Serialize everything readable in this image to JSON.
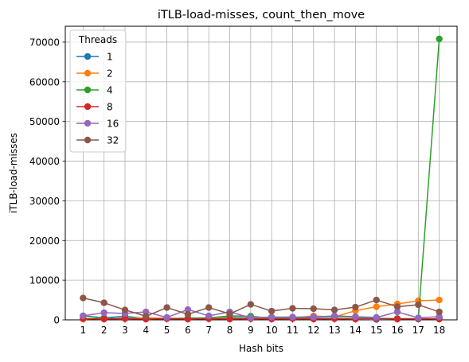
{
  "chart_data": {
    "type": "line",
    "title": "iTLB-load-misses, count_then_move",
    "xlabel": "Hash bits",
    "ylabel": "iTLB-load-misses",
    "x": [
      1,
      2,
      3,
      4,
      5,
      6,
      7,
      8,
      9,
      10,
      11,
      12,
      13,
      14,
      15,
      16,
      17,
      18
    ],
    "xticks": [
      "1",
      "2",
      "3",
      "4",
      "5",
      "6",
      "7",
      "8",
      "9",
      "10",
      "11",
      "12",
      "13",
      "14",
      "15",
      "16",
      "17",
      "18"
    ],
    "ylim": [
      0,
      74000
    ],
    "yticks": [
      0,
      10000,
      20000,
      30000,
      40000,
      50000,
      60000,
      70000
    ],
    "ytick_labels": [
      "0",
      "10000",
      "20000",
      "30000",
      "40000",
      "50000",
      "60000",
      "70000"
    ],
    "grid": true,
    "legend": {
      "title": "Threads",
      "placement": "top-left"
    },
    "series": [
      {
        "name": "1",
        "color": "#1f77b4",
        "values": [
          1000,
          500,
          900,
          300,
          400,
          200,
          300,
          600,
          500,
          300,
          600,
          400,
          300,
          200,
          100,
          300,
          200,
          300
        ]
      },
      {
        "name": "2",
        "color": "#ff7f0e",
        "values": [
          200,
          300,
          400,
          500,
          400,
          400,
          500,
          300,
          400,
          600,
          500,
          1000,
          700,
          2300,
          3300,
          4000,
          4800,
          5000
        ]
      },
      {
        "name": "4",
        "color": "#2ca02c",
        "values": [
          1000,
          300,
          400,
          200,
          300,
          400,
          500,
          1000,
          900,
          400,
          500,
          700,
          800,
          600,
          400,
          300,
          300,
          70800
        ]
      },
      {
        "name": "8",
        "color": "#d62728",
        "values": [
          300,
          200,
          300,
          200,
          300,
          200,
          300,
          200,
          300,
          200,
          300,
          200,
          300,
          200,
          300,
          200,
          300,
          200
        ]
      },
      {
        "name": "16",
        "color": "#9467bd",
        "values": [
          1000,
          1800,
          1600,
          2000,
          600,
          2600,
          1000,
          2000,
          500,
          700,
          700,
          700,
          1000,
          800,
          600,
          2000,
          500,
          800
        ]
      },
      {
        "name": "32",
        "color": "#8c564b",
        "values": [
          5500,
          4300,
          2500,
          900,
          3100,
          1400,
          3100,
          1500,
          3900,
          2200,
          2900,
          2800,
          2500,
          3200,
          5000,
          3300,
          3800,
          2000
        ]
      }
    ]
  }
}
